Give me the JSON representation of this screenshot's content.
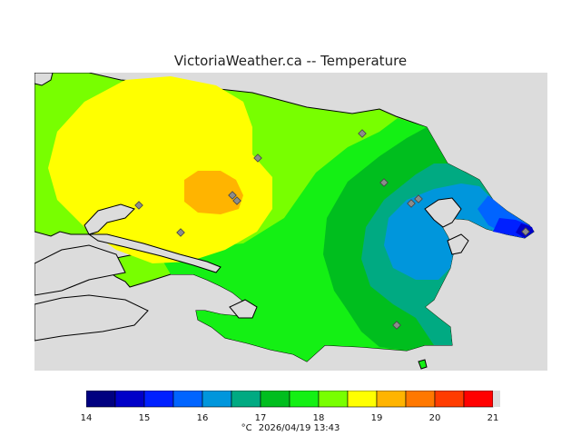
{
  "title": "VictoriaWeather.ca -- Temperature",
  "units": "°C",
  "timestamp": "2026/04/19 13:43",
  "colorbar": {
    "ticks": [
      "14",
      "15",
      "16",
      "17",
      "18",
      "19",
      "20",
      "21"
    ],
    "bands": [
      {
        "from": 14.0,
        "to": 14.5,
        "color": "#000080"
      },
      {
        "from": 14.5,
        "to": 15.0,
        "color": "#0000c8"
      },
      {
        "from": 15.0,
        "to": 15.5,
        "color": "#0020ff"
      },
      {
        "from": 15.5,
        "to": 16.0,
        "color": "#0064ff"
      },
      {
        "from": 16.0,
        "to": 16.5,
        "color": "#0096dc"
      },
      {
        "from": 16.5,
        "to": 17.0,
        "color": "#00aa82"
      },
      {
        "from": 17.0,
        "to": 17.5,
        "color": "#00be1e"
      },
      {
        "from": 17.5,
        "to": 18.0,
        "color": "#14f014"
      },
      {
        "from": 18.0,
        "to": 18.5,
        "color": "#78ff00"
      },
      {
        "from": 18.5,
        "to": 19.0,
        "color": "#ffff00"
      },
      {
        "from": 19.0,
        "to": 19.5,
        "color": "#ffb400"
      },
      {
        "from": 19.5,
        "to": 20.0,
        "color": "#ff7800"
      },
      {
        "from": 20.0,
        "to": 20.5,
        "color": "#ff3c00"
      },
      {
        "from": 20.5,
        "to": 21.0,
        "color": "#ff0000"
      }
    ]
  },
  "map_colors": {
    "water": "#dcdcdc",
    "coast": "#000000",
    "station_fill": "#8c8c8c"
  },
  "stations_count_note": ""
}
